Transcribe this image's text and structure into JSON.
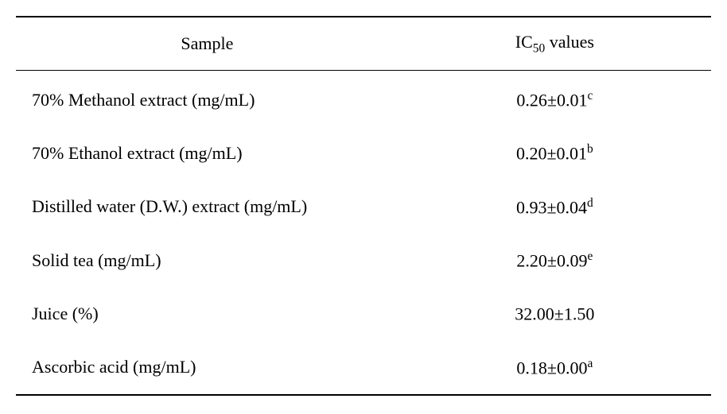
{
  "table": {
    "type": "table",
    "columns": [
      {
        "label": "Sample",
        "align": "left",
        "width": "55%"
      },
      {
        "label_prefix": "IC",
        "label_sub": "50",
        "label_suffix": " values",
        "align": "center",
        "width": "45%"
      }
    ],
    "rows": [
      {
        "sample": "70% Methanol extract (mg/mL)",
        "value": "0.26±0.01",
        "superscript": "c"
      },
      {
        "sample": "70% Ethanol extract (mg/mL)",
        "value": "0.20±0.01",
        "superscript": "b"
      },
      {
        "sample": "Distilled water (D.W.) extract (mg/mL)",
        "value": "0.93±0.04",
        "superscript": "d"
      },
      {
        "sample": "Solid tea (mg/mL)",
        "value": "2.20±0.09",
        "superscript": "e"
      },
      {
        "sample": "Juice (%)",
        "value": "32.00±1.50",
        "superscript": ""
      },
      {
        "sample": "Ascorbic acid (mg/mL)",
        "value": "0.18±0.00",
        "superscript": "a"
      }
    ],
    "border_color": "#000000",
    "background_color": "#ffffff",
    "text_color": "#000000",
    "font_size": 22,
    "header_border_top_width": 2,
    "header_border_bottom_style": "double-thin",
    "bottom_border_width": 2,
    "row_padding_vertical": 20,
    "cell_padding_horizontal": 20
  }
}
